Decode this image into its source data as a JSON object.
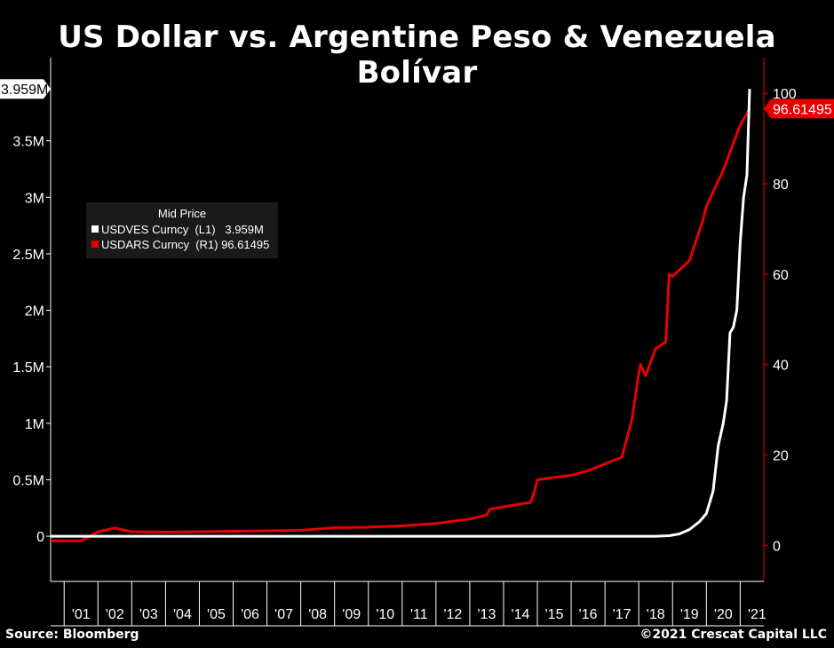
{
  "title": "US Dollar vs. Argentine Peso & Venezuela Bolívar",
  "source": "Source: Bloomberg",
  "copyright": "©2021 Crescat Capital LLC",
  "colors": {
    "ves": "#ffffff",
    "ars": "#e60000",
    "background": "#000000"
  },
  "chart_data": {
    "type": "line",
    "legend": {
      "title": "Mid Price",
      "placement": "top-left",
      "entries": [
        {
          "text": "USDVES Curncy  (L1)   3.959M",
          "series": "ves"
        },
        {
          "text": "USDARS Curncy  (R1) 96.61495",
          "series": "ars"
        }
      ]
    },
    "x_ticks": [
      "'01",
      "'02",
      "'03",
      "'04",
      "'05",
      "'06",
      "'07",
      "'08",
      "'09",
      "'10",
      "'11",
      "'12",
      "'13",
      "'14",
      "'15",
      "'16",
      "'17",
      "'18",
      "'19",
      "'20",
      "'21"
    ],
    "x_range": [
      2000.6,
      2021.7
    ],
    "left_axis": {
      "range": [
        -400000,
        4000000
      ],
      "ticks": [
        0,
        500000,
        1000000,
        1500000,
        2000000,
        2500000,
        3000000,
        3500000
      ],
      "tick_labels": [
        "0",
        "0.5M",
        "1M",
        "1.5M",
        "2M",
        "2.5M",
        "3M",
        "3.5M"
      ],
      "last_value_label": "3.959M",
      "last_value": 3959000
    },
    "right_axis": {
      "range": [
        -8,
        102
      ],
      "ticks": [
        0,
        20,
        40,
        60,
        80,
        100
      ],
      "tick_labels": [
        "0",
        "20",
        "40",
        "60",
        "80",
        "100"
      ],
      "last_value_label": "96.61495",
      "last_value": 96.61495
    },
    "series": [
      {
        "key": "ves",
        "axis": "left",
        "x": [
          2000.6,
          2018.5,
          2018.9,
          2019.2,
          2019.5,
          2019.8,
          2020.0,
          2020.2,
          2020.35,
          2020.5,
          2020.6,
          2020.7,
          2020.8,
          2020.9,
          2021.0,
          2021.1,
          2021.2,
          2021.28
        ],
        "y": [
          0,
          0,
          5000,
          20000,
          60000,
          130000,
          200000,
          400000,
          800000,
          1000000,
          1200000,
          1800000,
          1850000,
          2000000,
          2600000,
          3000000,
          3200000,
          3959000
        ]
      },
      {
        "key": "ars",
        "axis": "right",
        "x": [
          2000.6,
          2001.0,
          2001.5,
          2002.0,
          2002.5,
          2003.0,
          2004.0,
          2006.0,
          2008.0,
          2009.0,
          2010.0,
          2011.0,
          2012.0,
          2013.0,
          2013.5,
          2013.6,
          2014.0,
          2014.8,
          2014.9,
          2015.0,
          2015.5,
          2016.0,
          2016.5,
          2017.0,
          2017.5,
          2017.8,
          2018.0,
          2018.05,
          2018.2,
          2018.5,
          2018.8,
          2018.9,
          2019.0,
          2019.5,
          2019.9,
          2020.0,
          2020.5,
          2021.0,
          2021.28
        ],
        "y": [
          1,
          1,
          1,
          3.0,
          3.8,
          3.0,
          2.9,
          3.1,
          3.3,
          3.9,
          4.0,
          4.3,
          4.8,
          5.8,
          6.7,
          8.0,
          8.5,
          9.5,
          11.5,
          14.5,
          15.0,
          15.5,
          16.5,
          18.0,
          19.5,
          28.0,
          38.0,
          40.0,
          37.5,
          43.5,
          45.0,
          60.0,
          59.5,
          63.0,
          72.0,
          75.0,
          83.0,
          93.0,
          96.61495
        ]
      }
    ],
    "xlabel": "",
    "ylabel": ""
  }
}
